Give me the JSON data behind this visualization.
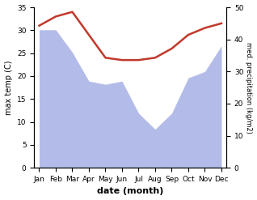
{
  "months": [
    "Jan",
    "Feb",
    "Mar",
    "Apr",
    "May",
    "Jun",
    "Jul",
    "Aug",
    "Sep",
    "Oct",
    "Nov",
    "Dec"
  ],
  "temp_max": [
    31.0,
    33.0,
    34.0,
    29.0,
    24.0,
    23.5,
    23.5,
    24.0,
    26.0,
    29.0,
    30.5,
    31.5
  ],
  "precipitation": [
    43,
    43,
    36,
    27,
    26,
    27,
    17,
    12,
    17,
    28,
    30,
    38
  ],
  "temp_ylim": [
    0,
    35
  ],
  "precip_ylim": [
    0,
    50
  ],
  "temp_color": "#c0392b",
  "precip_color": "#b3bce8",
  "xlabel": "date (month)",
  "ylabel_left": "max temp (C)",
  "ylabel_right": "med. precipitation (kg/m2)",
  "temp_linewidth": 1.8,
  "fig_width": 3.18,
  "fig_height": 2.47,
  "dpi": 100
}
